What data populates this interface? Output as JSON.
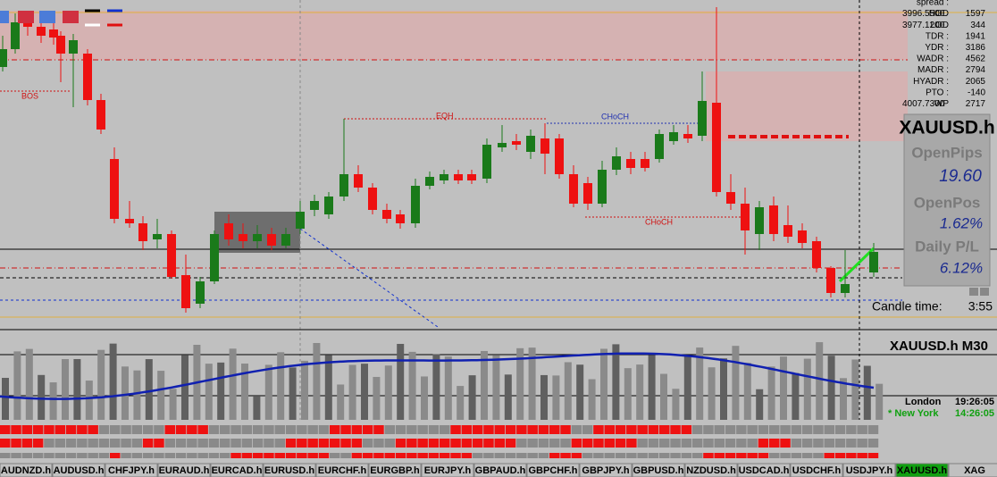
{
  "symbol": "XAUUSD.h",
  "stats": [
    {
      "label": "spread :",
      "value": ""
    },
    {
      "label": "HOD",
      "value": "1597",
      "price": "3996.5500"
    },
    {
      "label": "LOD",
      "value": "344",
      "price": "3977.1200"
    },
    {
      "label": "TDR :",
      "value": "1941"
    },
    {
      "label": "YDR :",
      "value": "3186"
    },
    {
      "label": "WADR :",
      "value": "4562"
    },
    {
      "label": "MADR :",
      "value": "2794"
    },
    {
      "label": "HYADR :",
      "value": "2065"
    },
    {
      "label": "PTO :",
      "value": "-140"
    },
    {
      "label": "WP",
      "value": "2717",
      "price": "4007.7300"
    }
  ],
  "panel": {
    "open_pips_label": "OpenPips",
    "open_pips": "19.60",
    "open_pos_label": "OpenPos",
    "open_pos": "1.62%",
    "daily_label": "Daily P/L",
    "daily": "6.12%"
  },
  "candle_time": {
    "label": "Candle time:",
    "value": "3:55"
  },
  "indicator_title": "XAUUSD.h  M30",
  "clocks": [
    {
      "city": "London",
      "time": "19:26:05"
    },
    {
      "city": "* New York",
      "time": "14:26:05"
    }
  ],
  "chart_labels": {
    "bos": "BOS",
    "eqh": "EQH",
    "choch_top": "CHoCH",
    "choch_bottom": "CHoCH"
  },
  "tabs": [
    "AUDNZD.h",
    "AUDUSD.h",
    "CHFJPY.h",
    "EURAUD.h",
    "EURCAD.h",
    "EURUSD.h",
    "EURCHF.h",
    "EURGBP.h",
    "EURJPY.h",
    "GBPAUD.h",
    "GBPCHF.h",
    "GBPJPY.h",
    "GBPUSD.h",
    "NZDUSD.h",
    "USDCAD.h",
    "USDCHF.h",
    "USDJPY.h",
    "XAUUSD.h",
    "XAG"
  ],
  "active_tab": 17
}
